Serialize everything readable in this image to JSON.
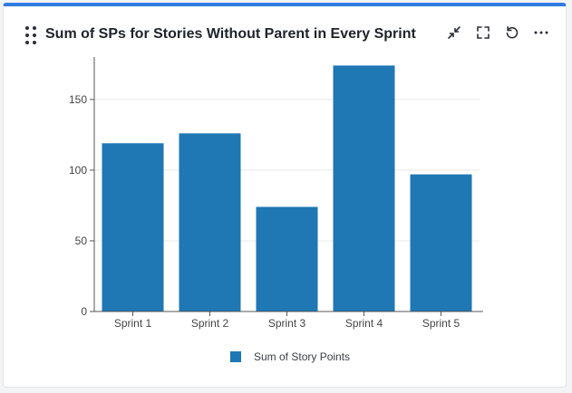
{
  "header": {
    "title": "Sum of SPs for Stories Without Parent in Every Sprint",
    "actions": [
      "minimize-icon",
      "fullscreen-icon",
      "refresh-icon",
      "more-icon"
    ]
  },
  "colors": {
    "accent": "#2f7de1",
    "bar": "#1f77b4"
  },
  "chart_data": {
    "type": "bar",
    "title": "Sum of SPs for Stories Without Parent in Every Sprint",
    "xlabel": "",
    "ylabel": "",
    "categories": [
      "Sprint 1",
      "Sprint 2",
      "Sprint 3",
      "Sprint 4",
      "Sprint 5"
    ],
    "series": [
      {
        "name": "Sum of Story Points",
        "values": [
          119,
          126,
          74,
          174,
          97
        ]
      }
    ],
    "ylim": [
      0,
      180
    ],
    "yticks": [
      0,
      50,
      100,
      150
    ],
    "grid": true,
    "legend": "bottom-center"
  }
}
